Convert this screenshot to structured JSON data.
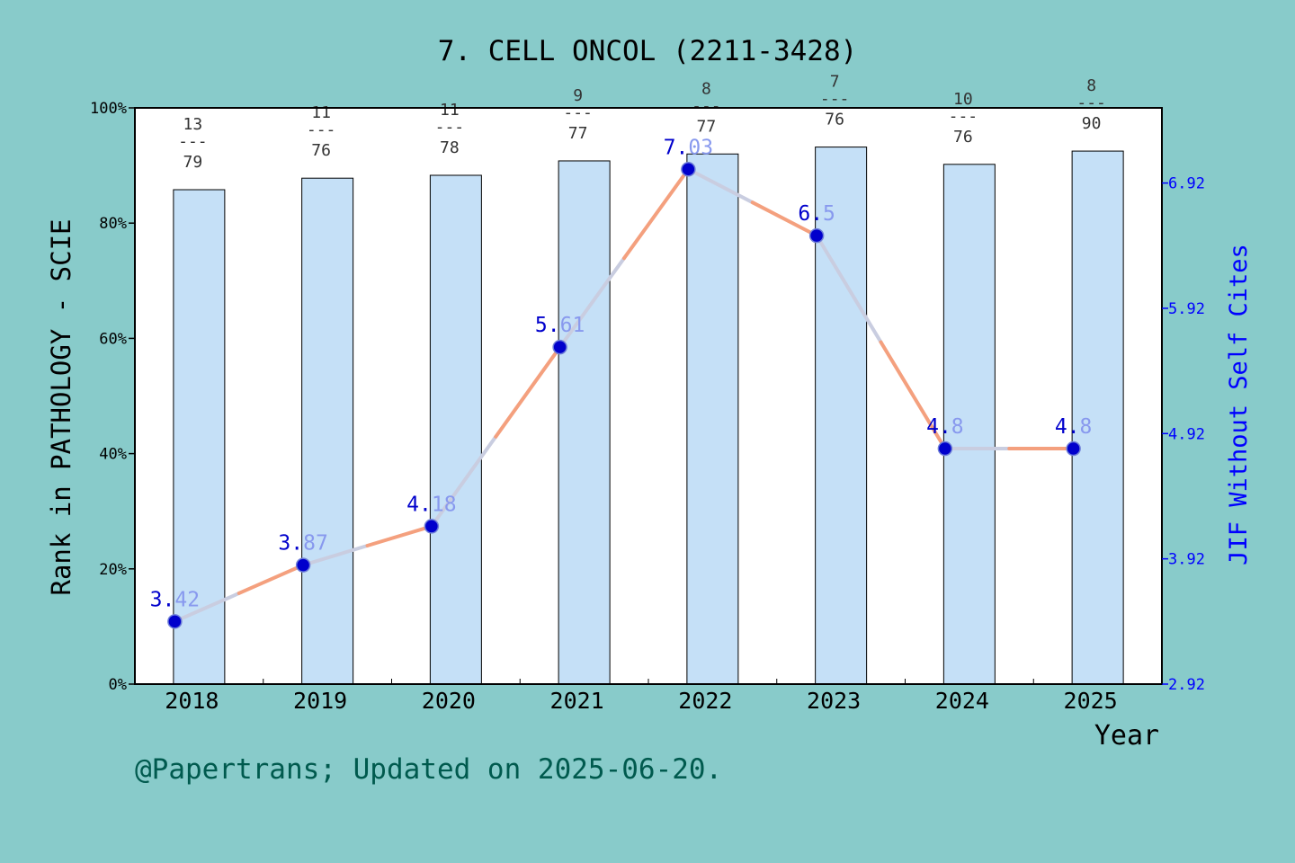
{
  "chart_data": {
    "type": "bar",
    "title": "7. CELL ONCOL (2211-3428)",
    "xlabel": "Year",
    "ylabel": "Rank in PATHOLOGY - SCIE",
    "y2label": "JIF Without Self Cites",
    "categories": [
      "2018",
      "2019",
      "2020",
      "2021",
      "2022",
      "2023",
      "2024",
      "2025"
    ],
    "ylim": [
      0,
      100
    ],
    "yticks": [
      "0%",
      "20%",
      "40%",
      "60%",
      "80%",
      "100%"
    ],
    "y2lim": [
      2.92,
      7.52
    ],
    "y2ticks": [
      "2.92",
      "3.92",
      "4.92",
      "5.92",
      "6.92"
    ],
    "series": [
      {
        "type": "bar",
        "values": [
          85.8,
          87.8,
          88.3,
          90.8,
          92.0,
          93.2,
          90.2,
          92.5
        ],
        "rank_labels": [
          {
            "rank": "13",
            "total": "79"
          },
          {
            "rank": "11",
            "total": "76"
          },
          {
            "rank": "11",
            "total": "78"
          },
          {
            "rank": "9",
            "total": "77"
          },
          {
            "rank": "8",
            "total": "77"
          },
          {
            "rank": "7",
            "total": "76"
          },
          {
            "rank": "10",
            "total": "76"
          },
          {
            "rank": "8",
            "total": "90"
          }
        ]
      },
      {
        "type": "line",
        "axis": "right",
        "values": [
          3.42,
          3.87,
          4.18,
          5.61,
          7.03,
          6.5,
          4.8,
          4.8
        ],
        "labels": [
          "3.42",
          "3.87",
          "4.18",
          "5.61",
          "7.03",
          "6.5",
          "4.8",
          "4.8"
        ]
      }
    ],
    "grid": false,
    "colors": {
      "background": "#88cbca",
      "bar": "#c5e0f7",
      "line": "#f4a07e",
      "line_soft": "#c9cde0",
      "marker": "#0000cc",
      "label_strong": "#0000cc",
      "label_soft": "#8899ee",
      "right_axis": "#0000ff",
      "footer": "#005a4e"
    }
  },
  "footer": "@Papertrans; Updated on 2025-06-20.",
  "divider": "---"
}
